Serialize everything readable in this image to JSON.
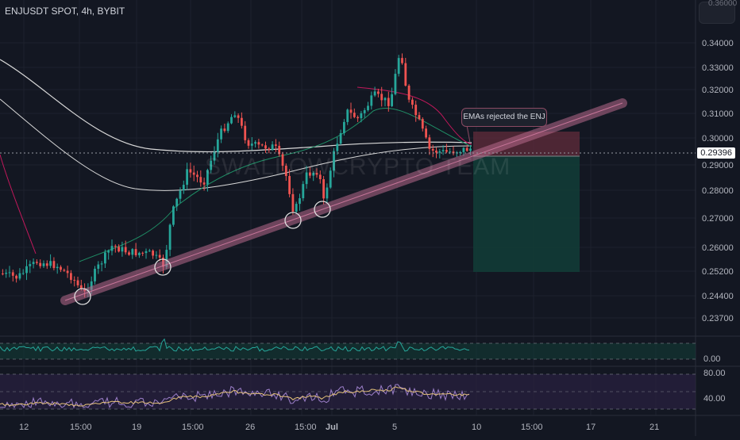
{
  "chart_title": "ENJUSDT SPOT, 4h, BYBIT",
  "watermark_text": "SWALLOWCRYPTO TEAM",
  "annotation": "EMAs rejected the ENJ",
  "price_scale_top": "0.36000",
  "price_axis": [
    "0.34000",
    "0.33000",
    "0.32000",
    "0.31000",
    "0.30000",
    "0.29000",
    "0.28000",
    "0.27000",
    "0.26000",
    "0.25200",
    "0.24400",
    "0.23700"
  ],
  "current_price": "0.29396",
  "time_axis": [
    "12",
    "15:00",
    "19",
    "15:00",
    "26",
    "15:00",
    "Jul",
    "5",
    "10",
    "15:00",
    "17",
    "21"
  ],
  "oscillator_axis": [
    "0.00"
  ],
  "rsi_axis": [
    "80.00",
    "40.00"
  ],
  "colors": {
    "background": "#131722",
    "bull": "#26a69a",
    "bear": "#ef5350",
    "trendline": "#b86a8c",
    "stop_zone": "#5c2a3a",
    "target_zone": "#123b36"
  },
  "chart_data": {
    "type": "candlestick",
    "title": "ENJUSDT SPOT, 4h, BYBIT",
    "ylim": [
      0.233,
      0.362
    ],
    "current_price": 0.29396,
    "key_points": [
      {
        "x": "15:00",
        "y": 0.2445
      },
      {
        "x": "19",
        "y": 0.252
      },
      {
        "x": "26",
        "y": 0.2695
      },
      {
        "x": "Jul",
        "y": 0.2715
      },
      {
        "x": "5",
        "y": 0.345
      }
    ],
    "trade_box": {
      "entry": 0.2935,
      "stop": 0.3025,
      "target": 0.252
    }
  }
}
